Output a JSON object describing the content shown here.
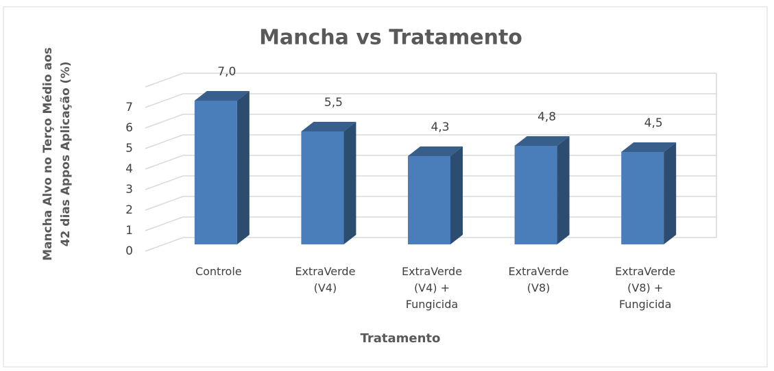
{
  "chart_data": {
    "type": "bar3d",
    "title": "Mancha vs Tratamento",
    "xlabel": "Tratamento",
    "ylabel": "Mancha Alvo no Terço Médio aos 42 dias Appos Aplicação (%)",
    "categories": [
      "Controle",
      "ExtraVerde (V4)",
      "ExtraVerde (V4) + Fungicida",
      "ExtraVerde (V8)",
      "ExtraVerde (V8) + Fungicida"
    ],
    "values": [
      7.0,
      5.5,
      4.3,
      4.8,
      4.5
    ],
    "value_labels": [
      "7,0",
      "5,5",
      "4,3",
      "4,8",
      "4,5"
    ],
    "color": "#4a7ebb",
    "ylim": [
      0,
      8
    ],
    "yticks": [
      0,
      1,
      2,
      3,
      4,
      5,
      6,
      7
    ],
    "grid": true
  }
}
